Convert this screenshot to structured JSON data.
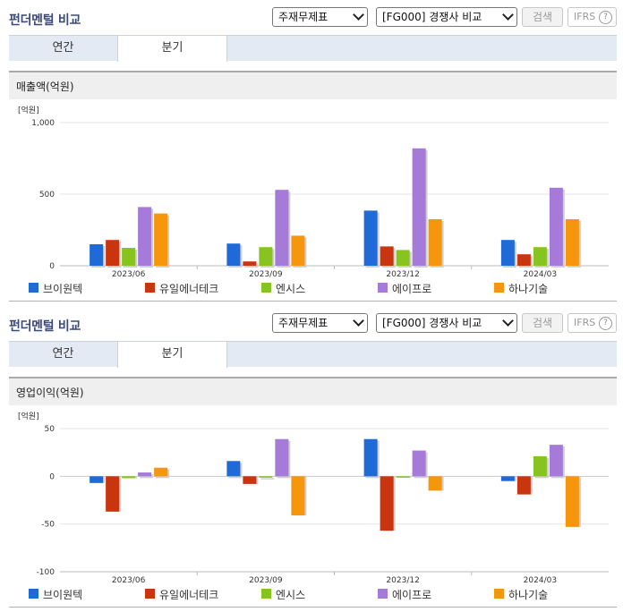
{
  "panels": [
    {
      "title": "펀더멘털 비교",
      "select_statement": "주재무제표",
      "select_compare": "[FG000] 경쟁사 비교",
      "search_label": "검색",
      "ifrs_label": "IFRS",
      "help_glyph": "?",
      "tabs": [
        "연간",
        "분기"
      ],
      "active_tab": "분기",
      "metric_label": "매출액(억원)",
      "unit_label": "[억원]"
    },
    {
      "title": "펀더멘털 비교",
      "select_statement": "주재무제표",
      "select_compare": "[FG000] 경쟁사 비교",
      "search_label": "검색",
      "ifrs_label": "IFRS",
      "help_glyph": "?",
      "tabs": [
        "연간",
        "분기"
      ],
      "active_tab": "분기",
      "metric_label": "영업이익(억원)",
      "unit_label": "[억원]"
    }
  ],
  "chart_data": [
    {
      "type": "bar",
      "title": "매출액(억원)",
      "ylabel": "[억원]",
      "ylim": [
        0,
        1000
      ],
      "yticks": [
        0,
        500,
        1000
      ],
      "ytick_labels": [
        "0",
        "500",
        "1,000"
      ],
      "categories": [
        "2023/06",
        "2023/09",
        "2023/12",
        "2024/03"
      ],
      "legend_position": "bottom",
      "grid": true,
      "series": [
        {
          "name": "브이원텍",
          "color": "#1f6ad6",
          "values": [
            150,
            155,
            385,
            180
          ]
        },
        {
          "name": "유일에너테크",
          "color": "#c9350f",
          "values": [
            180,
            30,
            135,
            80
          ]
        },
        {
          "name": "엔시스",
          "color": "#88c420",
          "values": [
            125,
            130,
            110,
            130
          ]
        },
        {
          "name": "에이프로",
          "color": "#a57ad8",
          "values": [
            410,
            530,
            820,
            545
          ]
        },
        {
          "name": "하나기술",
          "color": "#f5960d",
          "values": [
            365,
            210,
            325,
            325
          ]
        }
      ]
    },
    {
      "type": "bar",
      "title": "영업이익(억원)",
      "ylabel": "[억원]",
      "ylim": [
        -100,
        50
      ],
      "yticks": [
        -100,
        -50,
        0,
        50
      ],
      "ytick_labels": [
        "-100",
        "-50",
        "0",
        "50"
      ],
      "categories": [
        "2023/06",
        "2023/09",
        "2023/12",
        "2024/03"
      ],
      "legend_position": "bottom",
      "grid": true,
      "series": [
        {
          "name": "브이원텍",
          "color": "#1f6ad6",
          "values": [
            -7,
            16,
            39,
            -5
          ]
        },
        {
          "name": "유일에너테크",
          "color": "#c9350f",
          "values": [
            -37,
            -8,
            -57,
            -19
          ]
        },
        {
          "name": "엔시스",
          "color": "#88c420",
          "values": [
            -2,
            0,
            -1,
            21
          ]
        },
        {
          "name": "에이프로",
          "color": "#a57ad8",
          "values": [
            4,
            39,
            27,
            33
          ]
        },
        {
          "name": "하나기술",
          "color": "#f5960d",
          "values": [
            9,
            -41,
            -15,
            -53
          ]
        }
      ]
    }
  ]
}
